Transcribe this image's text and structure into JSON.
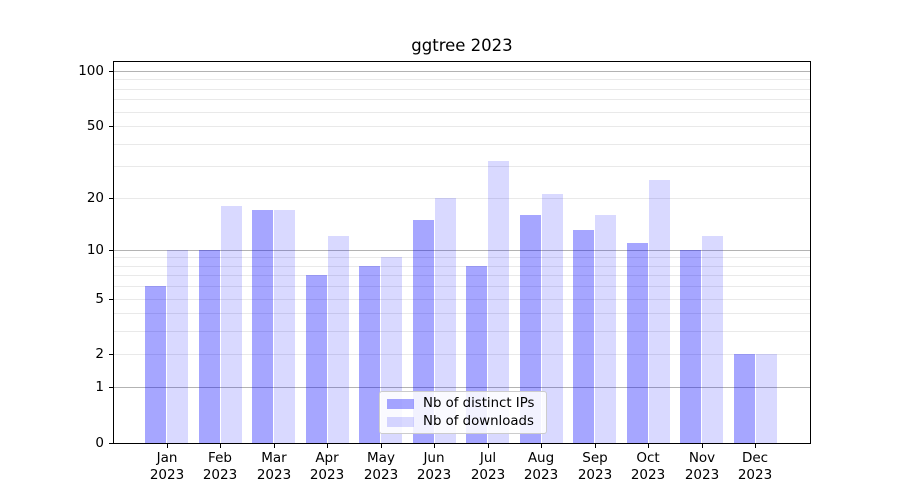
{
  "chart_data": {
    "type": "bar",
    "title": "ggtree 2023",
    "categories": [
      "Jan",
      "Feb",
      "Mar",
      "Apr",
      "May",
      "Jun",
      "Jul",
      "Aug",
      "Sep",
      "Oct",
      "Nov",
      "Dec"
    ],
    "year_label": "2023",
    "series": [
      {
        "name": "Nb of distinct IPs",
        "color": "rgba(0,0,255,0.35)",
        "values": [
          6,
          10,
          17,
          7,
          8,
          15,
          8,
          16,
          13,
          11,
          10,
          2
        ]
      },
      {
        "name": "Nb of downloads",
        "color": "rgba(0,0,255,0.15)",
        "values": [
          10,
          18,
          17,
          12,
          9,
          20,
          32,
          21,
          16,
          25,
          12,
          2
        ]
      }
    ],
    "y_axis": {
      "scale": "log1p",
      "tick_labels": [
        0,
        1,
        2,
        5,
        10,
        20,
        50,
        100
      ],
      "major_gridlines": [
        1,
        10,
        100
      ],
      "minor_gridlines": [
        2,
        3,
        4,
        5,
        6,
        7,
        8,
        9,
        20,
        30,
        40,
        50,
        60,
        70,
        80,
        90
      ],
      "ylim": [
        0,
        113
      ]
    },
    "legend": {
      "position": "lower-center"
    },
    "colors": {
      "major_grid": "#b3b3b3",
      "minor_grid": "#e9e9e9",
      "spine": "#000000",
      "text": "#000000"
    },
    "grid": true
  }
}
